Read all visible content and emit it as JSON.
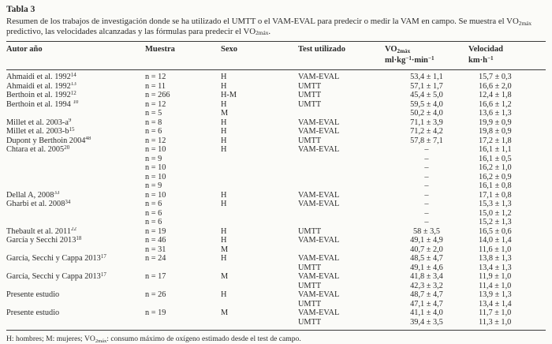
{
  "page": {
    "background_color": "#fbfbf8",
    "text_color": "#2b2b2b",
    "rule_color": "#3a3a3a"
  },
  "table": {
    "title": "Tabla 3",
    "caption_parts": [
      {
        "t": "Resumen de los trabajos de investigación donde se ha utilizado el UMTT o el VAM-EVAL para predecir o medir la VAM en campo. Se muestra el VO"
      },
      {
        "sub": "2máx"
      },
      {
        "t": " predictivo, las velocidades alcanzadas y las fórmulas para predecir el VO"
      },
      {
        "sub": "2máx"
      },
      {
        "t": "."
      }
    ],
    "columns": [
      {
        "id": "autor",
        "label_parts": [
          {
            "t": "Autor año"
          }
        ]
      },
      {
        "id": "muestra",
        "label_parts": [
          {
            "t": "Muestra"
          }
        ]
      },
      {
        "id": "sexo",
        "label_parts": [
          {
            "t": "Sexo"
          }
        ]
      },
      {
        "id": "test",
        "label_parts": [
          {
            "t": "Test utilizado"
          }
        ]
      },
      {
        "id": "vo2",
        "label_parts": [
          {
            "t": "VO"
          },
          {
            "sub": "2máx"
          }
        ],
        "unit_parts": [
          {
            "t": "ml·kg"
          },
          {
            "sup": "−1"
          },
          {
            "t": "·min"
          },
          {
            "sup": "−1"
          }
        ]
      },
      {
        "id": "vel",
        "label_parts": [
          {
            "t": "Velocidad"
          }
        ],
        "unit_parts": [
          {
            "t": "km·h"
          },
          {
            "sup": "−1"
          }
        ]
      }
    ],
    "rows": [
      {
        "autor": [
          {
            "t": "Ahmaidi et al. 1992"
          },
          {
            "sup": "14"
          }
        ],
        "muestra": "n = 12",
        "sexo": "H",
        "test": "VAM-EVAL",
        "vo2": "53,4 ± 1,1",
        "vel": "15,7 ± 0,3"
      },
      {
        "autor": [
          {
            "t": "Ahmaidi et al. 1992"
          },
          {
            "sup": "13"
          }
        ],
        "muestra": "n = 11",
        "sexo": "H",
        "test": "UMTT",
        "vo2": "57,1 ± 1,7",
        "vel": "16,6 ± 2,0"
      },
      {
        "autor": [
          {
            "t": "Berthoin et al. 1992"
          },
          {
            "sup": "12"
          }
        ],
        "muestra": "n = 266",
        "sexo": "H-M",
        "test": "UMTT",
        "vo2": "45,4 ± 5,0",
        "vel": "12,4 ± 1,8"
      },
      {
        "autor": [
          {
            "t": "Berthoin et al. 1994 "
          },
          {
            "sup": "10"
          }
        ],
        "muestra": "n = 12",
        "sexo": "H",
        "test": "UMTT",
        "vo2": "59,5 ± 4,0",
        "vel": "16,6 ± 1,2"
      },
      {
        "autor": "",
        "muestra": "n = 5",
        "sexo": "M",
        "test": "",
        "vo2": "50,2 ± 4,0",
        "vel": "13,6 ± 1,3"
      },
      {
        "autor": [
          {
            "t": "Millet et al. 2003-a"
          },
          {
            "sup": "9"
          }
        ],
        "muestra": "n = 8",
        "sexo": "H",
        "test": "VAM-EVAL",
        "vo2": "71,1 ± 3,9",
        "vel": "19,9 ± 0,9"
      },
      {
        "autor": [
          {
            "t": "Millet et al. 2003-b"
          },
          {
            "sup": "15"
          }
        ],
        "muestra": "n = 6",
        "sexo": "H",
        "test": "VAM-EVAL",
        "vo2": "71,2 ± 4,2",
        "vel": "19,8 ± 0,9"
      },
      {
        "autor": [
          {
            "t": "Dupont y Berthoin 2004"
          },
          {
            "sup": "48"
          }
        ],
        "muestra": "n = 12",
        "sexo": "H",
        "test": "UMTT",
        "vo2": "57,8 ± 7,1",
        "vel": "17,2 ± 1,8"
      },
      {
        "autor": [
          {
            "t": "Chtara et al. 2005"
          },
          {
            "sup": "20"
          }
        ],
        "muestra": "n = 10",
        "sexo": "H",
        "test": "VAM-EVAL",
        "vo2": "–",
        "vel": "16,1 ± 1,1"
      },
      {
        "autor": "",
        "muestra": "n = 9",
        "sexo": "",
        "test": "",
        "vo2": "–",
        "vel": "16,1 ± 0,5"
      },
      {
        "autor": "",
        "muestra": "n = 10",
        "sexo": "",
        "test": "",
        "vo2": "–",
        "vel": "16,2 ± 1,0"
      },
      {
        "autor": "",
        "muestra": "n = 10",
        "sexo": "",
        "test": "",
        "vo2": "–",
        "vel": "16,2 ± 0,9"
      },
      {
        "autor": "",
        "muestra": "n = 9",
        "sexo": "",
        "test": "",
        "vo2": "–",
        "vel": "16,1 ± 0,8"
      },
      {
        "autor": [
          {
            "t": "Dellal A, 2008"
          },
          {
            "sup": "33"
          }
        ],
        "muestra": "n = 10",
        "sexo": "H",
        "test": "VAM-EVAL",
        "vo2": "–",
        "vel": "17,1 ± 0,8"
      },
      {
        "autor": [
          {
            "t": "Gharbi et al. 2008"
          },
          {
            "sup": "34"
          }
        ],
        "muestra": "n = 6",
        "sexo": "H",
        "test": "VAM-EVAL",
        "vo2": "–",
        "vel": "15,3 ± 1,3"
      },
      {
        "autor": "",
        "muestra": "n = 6",
        "sexo": "",
        "test": "",
        "vo2": "–",
        "vel": "15,0 ± 1,2"
      },
      {
        "autor": "",
        "muestra": "n = 6",
        "sexo": "",
        "test": "",
        "vo2": "–",
        "vel": "15,2 ± 1,3"
      },
      {
        "autor": [
          {
            "t": "Thebault et al. 2011"
          },
          {
            "sup": "22"
          }
        ],
        "muestra": "n = 19",
        "sexo": "H",
        "test": "UMTT",
        "vo2": "58 ± 3,5",
        "vel": "16,5 ± 0,6"
      },
      {
        "autor": [
          {
            "t": "García y Secchi 2013"
          },
          {
            "sup": "18"
          }
        ],
        "muestra": "n = 46",
        "sexo": "H",
        "test": "VAM-EVAL",
        "vo2": "49,1 ± 4,9",
        "vel": "14,0 ± 1,4"
      },
      {
        "autor": "",
        "muestra": "n = 31",
        "sexo": "M",
        "test": "",
        "vo2": "40,7 ± 2,0",
        "vel": "11,6 ± 1,0"
      },
      {
        "autor": [
          {
            "t": "García, Secchi y Cappa 2013"
          },
          {
            "sup": "17"
          }
        ],
        "muestra": "n = 24",
        "sexo": "H",
        "test": "VAM-EVAL",
        "vo2": "48,5 ± 4,7",
        "vel": "13,8 ± 1,3"
      },
      {
        "autor": "",
        "muestra": "",
        "sexo": "",
        "test": "UMTT",
        "vo2": "49,1 ± 4,6",
        "vel": "13,4 ± 1,3"
      },
      {
        "autor": [
          {
            "t": "García, Secchi y Cappa 2013"
          },
          {
            "sup": "17"
          }
        ],
        "muestra": "n = 17",
        "sexo": "M",
        "test": "VAM-EVAL",
        "vo2": "41,8 ± 3,4",
        "vel": "11,9 ± 1,0"
      },
      {
        "autor": "",
        "muestra": "",
        "sexo": "",
        "test": "UMTT",
        "vo2": "42,3 ± 3,2",
        "vel": "11,4 ± 1,0"
      },
      {
        "autor": "Presente estudio",
        "muestra": "n = 26",
        "sexo": "H",
        "test": "VAM-EVAL",
        "vo2": "48,7 ± 4,7",
        "vel": "13,9 ± 1,3"
      },
      {
        "autor": "",
        "muestra": "",
        "sexo": "",
        "test": "UMTT",
        "vo2": "47,1 ± 4,7",
        "vel": "13,4 ± 1,4"
      },
      {
        "autor": "Presente estudio",
        "muestra": "n = 19",
        "sexo": "M",
        "test": "VAM-EVAL",
        "vo2": "41,1 ± 4,0",
        "vel": "11,7 ± 1,0"
      },
      {
        "autor": "",
        "muestra": "",
        "sexo": "",
        "test": "UMTT",
        "vo2": "39,4 ± 3,5",
        "vel": "11,3 ± 1,0"
      }
    ],
    "footnote_parts": [
      {
        "t": "H: hombres; M: mujeres; VO"
      },
      {
        "sub": "2máx"
      },
      {
        "t": ": consumo máximo de oxígeno estimado desde el test de campo."
      }
    ]
  }
}
